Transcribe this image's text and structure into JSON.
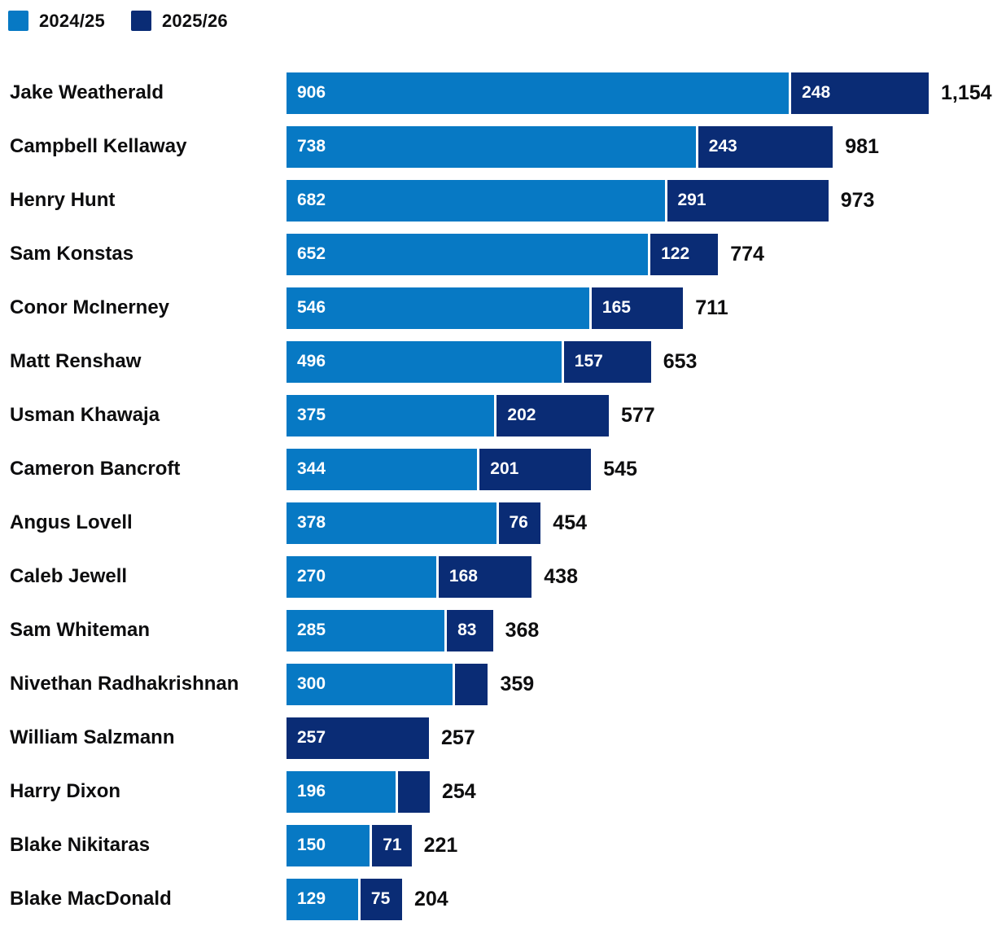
{
  "chart_data": {
    "type": "bar",
    "orientation": "horizontal",
    "stacked": true,
    "title": "",
    "legend_position": "top-left",
    "grid": false,
    "series_names": [
      "2024/25",
      "2025/26"
    ],
    "colors": [
      "#0779c4",
      "#0a2c75"
    ],
    "text_color": "#0e0e0f",
    "bar_value_text_color": "#ffffff",
    "max_total": 1154,
    "categories": [
      "Jake Weatherald",
      "Campbell Kellaway",
      "Henry Hunt",
      "Sam Konstas",
      "Conor McInerney",
      "Matt Renshaw",
      "Usman Khawaja",
      "Cameron Bancroft",
      "Angus Lovell",
      "Caleb Jewell",
      "Sam Whiteman",
      "Nivethan Radhakrishnan",
      "William Salzmann",
      "Harry Dixon",
      "Blake Nikitaras",
      "Blake MacDonald"
    ],
    "rows": [
      {
        "name": "Jake Weatherald",
        "values": [
          906,
          248
        ],
        "labels": [
          "906",
          "248"
        ],
        "total": 1154,
        "total_label": "1,154"
      },
      {
        "name": "Campbell Kellaway",
        "values": [
          738,
          243
        ],
        "labels": [
          "738",
          "243"
        ],
        "total": 981,
        "total_label": "981"
      },
      {
        "name": "Henry Hunt",
        "values": [
          682,
          291
        ],
        "labels": [
          "682",
          "291"
        ],
        "total": 973,
        "total_label": "973"
      },
      {
        "name": "Sam Konstas",
        "values": [
          652,
          122
        ],
        "labels": [
          "652",
          "122"
        ],
        "total": 774,
        "total_label": "774"
      },
      {
        "name": "Conor McInerney",
        "values": [
          546,
          165
        ],
        "labels": [
          "546",
          "165"
        ],
        "total": 711,
        "total_label": "711"
      },
      {
        "name": "Matt Renshaw",
        "values": [
          496,
          157
        ],
        "labels": [
          "496",
          "157"
        ],
        "total": 653,
        "total_label": "653"
      },
      {
        "name": "Usman Khawaja",
        "values": [
          375,
          202
        ],
        "labels": [
          "375",
          "202"
        ],
        "total": 577,
        "total_label": "577"
      },
      {
        "name": "Cameron Bancroft",
        "values": [
          344,
          201
        ],
        "labels": [
          "344",
          "201"
        ],
        "total": 545,
        "total_label": "545"
      },
      {
        "name": "Angus Lovell",
        "values": [
          378,
          76
        ],
        "labels": [
          "378",
          "76"
        ],
        "total": 454,
        "total_label": "454"
      },
      {
        "name": "Caleb Jewell",
        "values": [
          270,
          168
        ],
        "labels": [
          "270",
          "168"
        ],
        "total": 438,
        "total_label": "438"
      },
      {
        "name": "Sam Whiteman",
        "values": [
          285,
          83
        ],
        "labels": [
          "285",
          "83"
        ],
        "total": 368,
        "total_label": "368"
      },
      {
        "name": "Nivethan Radhakrishnan",
        "values": [
          300,
          59
        ],
        "labels": [
          "300",
          ""
        ],
        "total": 359,
        "total_label": "359"
      },
      {
        "name": "William Salzmann",
        "values": [
          0,
          257
        ],
        "labels": [
          "",
          "257"
        ],
        "total": 257,
        "total_label": "257"
      },
      {
        "name": "Harry Dixon",
        "values": [
          196,
          58
        ],
        "labels": [
          "196",
          ""
        ],
        "total": 254,
        "total_label": "254"
      },
      {
        "name": "Blake Nikitaras",
        "values": [
          150,
          71
        ],
        "labels": [
          "150",
          "71"
        ],
        "total": 221,
        "total_label": "221"
      },
      {
        "name": "Blake MacDonald",
        "values": [
          129,
          75
        ],
        "labels": [
          "129",
          "75"
        ],
        "total": 204,
        "total_label": "204"
      }
    ]
  }
}
